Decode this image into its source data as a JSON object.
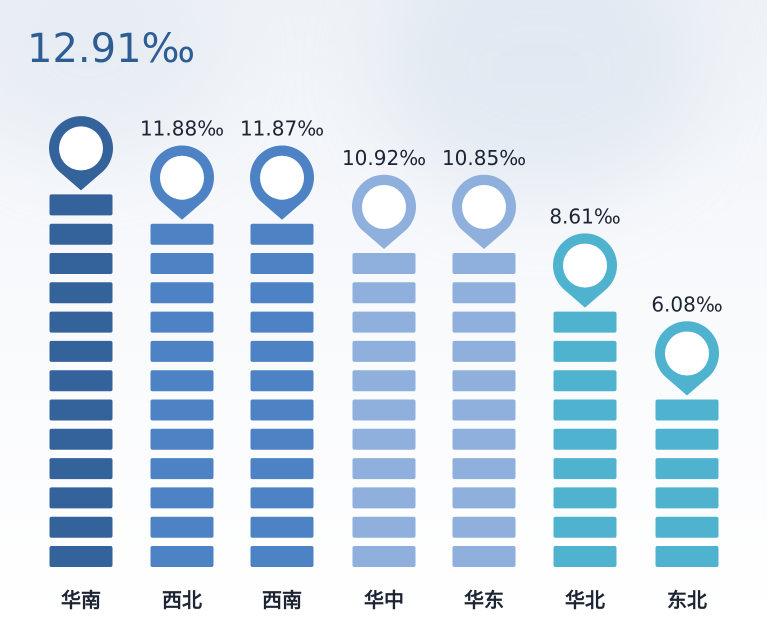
{
  "chart_data": {
    "type": "bar",
    "categories": [
      "华南",
      "西北",
      "西南",
      "华中",
      "华东",
      "华北",
      "东北"
    ],
    "values": [
      12.91,
      11.88,
      11.87,
      10.92,
      10.85,
      8.61,
      6.08
    ],
    "value_labels": [
      "12.91‰",
      "11.88‰",
      "11.87‰",
      "10.92‰",
      "10.85‰",
      "8.61‰",
      "6.08‰"
    ],
    "unit": "‰",
    "ylim": [
      0,
      12.91
    ],
    "grid": false,
    "legend": "none",
    "colors": [
      "#34629b",
      "#4d82c4",
      "#4d82c4",
      "#8fb0dc",
      "#8fb0dc",
      "#4fb3cf",
      "#4fb3cf"
    ]
  }
}
